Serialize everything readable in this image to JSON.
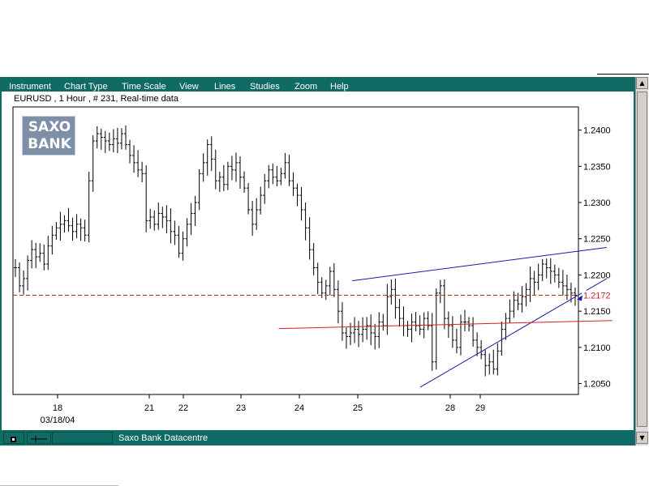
{
  "menu": {
    "items": [
      "Instrument",
      "Chart Type",
      "Time Scale",
      "View",
      "Lines",
      "Studies",
      "Zoom",
      "Help"
    ]
  },
  "chart_header": "EURUSD , 1 Hour , # 231, Real-time data",
  "logo": {
    "line1": "SAXO",
    "line2": "BANK"
  },
  "status": {
    "text": "Saxo Bank Datacentre"
  },
  "colors": {
    "teal": "#0f6b63",
    "trend": "#1a1aa8",
    "support": "#d42020",
    "current": "#d42020"
  },
  "icons": {
    "scroll_up": "arrow-up-icon",
    "scroll_down": "arrow-down-icon"
  },
  "chart_data": {
    "type": "bar",
    "subtype": "ohlc",
    "instrument": "EURUSD",
    "timeframe": "1 Hour",
    "ylim": [
      1.2035,
      1.2432
    ],
    "y_ticks": [
      "1.2400",
      "1.2350",
      "1.2300",
      "1.2250",
      "1.2200",
      "1.2150",
      "1.2100",
      "1.2050"
    ],
    "x_ticks": [
      "18",
      "21",
      "22",
      "23",
      "24",
      "25",
      "28",
      "29"
    ],
    "x_sublabel": "03/18/04",
    "current_price": "1.2172",
    "lines": [
      {
        "name": "upper-trendline",
        "color": "trend",
        "from": [
          0.6,
          1.2192
        ],
        "to": [
          1.05,
          1.2238
        ]
      },
      {
        "name": "lower-trendline",
        "color": "trend",
        "from": [
          0.72,
          1.2045
        ],
        "to": [
          1.05,
          1.2195
        ]
      },
      {
        "name": "support-line",
        "color": "support",
        "from": [
          0.47,
          1.2126
        ],
        "to": [
          1.06,
          1.2137
        ]
      }
    ],
    "series": [
      {
        "values": [
          1.221,
          1.2185,
          1.2195,
          1.222,
          1.2235,
          1.2225,
          1.223,
          1.2215,
          1.224,
          1.2255,
          1.2265,
          1.227,
          1.2275,
          1.2268,
          1.226,
          1.227,
          1.2265,
          1.2255,
          1.233,
          1.2385,
          1.2395,
          1.239,
          1.2385,
          1.238,
          1.2388,
          1.2382,
          1.2395,
          1.238,
          1.2365,
          1.2355,
          1.2345,
          1.234,
          1.2275,
          1.228,
          1.227,
          1.2285,
          1.228,
          1.2275,
          1.226,
          1.2255,
          1.223,
          1.225,
          1.227,
          1.2285,
          1.23,
          1.234,
          1.2355,
          1.238,
          1.236,
          1.233,
          1.2335,
          1.2325,
          1.235,
          1.2345,
          1.2355,
          1.2335,
          1.232,
          1.229,
          1.227,
          1.229,
          1.231,
          1.233,
          1.2345,
          1.2335,
          1.233,
          1.234,
          1.2355,
          1.233,
          1.232,
          1.231,
          1.229,
          1.2265,
          1.2235,
          1.221,
          1.219,
          1.2175,
          1.2185,
          1.2205,
          1.218,
          1.215,
          1.212,
          1.2115,
          1.212,
          1.2125,
          1.2118,
          1.2125,
          1.213,
          1.212,
          1.2115,
          1.2135,
          1.213,
          1.217,
          1.218,
          1.2155,
          1.214,
          1.213,
          1.2125,
          1.2135,
          1.213,
          1.2125,
          1.214,
          1.213,
          1.208,
          1.2175,
          1.2185,
          1.214,
          1.213,
          1.211,
          1.21,
          1.2135,
          1.2135,
          1.213,
          1.211,
          1.21,
          1.209,
          1.2075,
          1.208,
          1.207,
          1.2095,
          1.2125,
          1.214,
          1.215,
          1.2165,
          1.216,
          1.217,
          1.218,
          1.2195,
          1.219,
          1.22,
          1.2215,
          1.221,
          1.2205,
          1.22,
          1.219,
          1.2185,
          1.218,
          1.2175,
          1.2172
        ]
      }
    ]
  }
}
